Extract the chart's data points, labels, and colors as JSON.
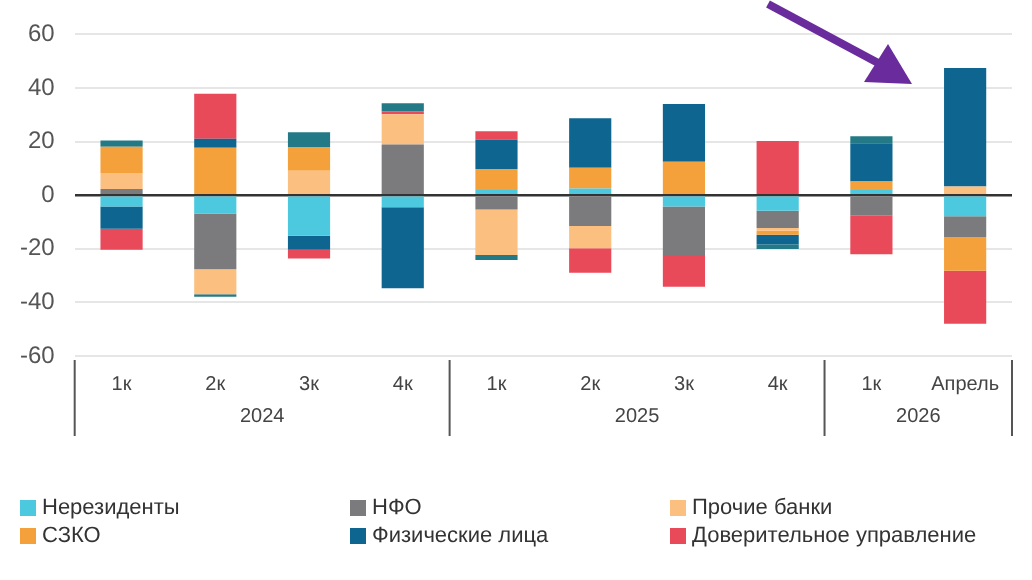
{
  "chart_data": {
    "type": "bar",
    "stacked": true,
    "categories": [
      "1к",
      "2к",
      "3к",
      "4к",
      "1к",
      "2к",
      "3к",
      "4к",
      "1к",
      "Апрель"
    ],
    "annotations": [
      "2024",
      "2025",
      "2026"
    ],
    "series": [
      {
        "name": "Нерезиденты",
        "color": "#4cc8df",
        "values": [
          -4.2,
          -6.8,
          -15.1,
          -4.5,
          1.9,
          2.5,
          -4.2,
          -5.8,
          1.9,
          -7.9
        ]
      },
      {
        "name": "НФО",
        "color": "#7b7b7d",
        "values": [
          2.3,
          -20.8,
          null,
          18.9,
          -5.3,
          -11.5,
          -18.5,
          -6.4,
          -7.7,
          -7.7
        ]
      },
      {
        "name": "Прочие банки",
        "color": "#fbbf80",
        "values": [
          6.0,
          -9.4,
          9.1,
          11.3,
          -17.0,
          -8.3,
          null,
          -1.1,
          null,
          3.2
        ]
      },
      {
        "name": "СЗКО",
        "color": "#f5a13b",
        "values": [
          9.8,
          17.7,
          8.9,
          null,
          7.9,
          7.7,
          12.5,
          -1.5,
          3.2,
          -12.6
        ]
      },
      {
        "name": "Физические лица",
        "color": "#0e6690",
        "values": [
          -8.3,
          3.4,
          -5.3,
          -30.2,
          10.9,
          18.5,
          21.5,
          -3.6,
          14.3,
          44.3
        ]
      },
      {
        "name": "Доверительное управление",
        "color": "#e84a5a",
        "values": [
          -7.9,
          16.8,
          -3.2,
          1.1,
          3.2,
          -9.1,
          -11.5,
          20.2,
          -14.3,
          -19.8
        ]
      },
      {
        "color": "#237a86",
        "values": [
          2.3,
          -0.9,
          5.5,
          3.0,
          -1.9,
          null,
          null,
          -1.7,
          2.6,
          null
        ]
      }
    ],
    "ylim": [
      -60,
      60
    ],
    "yticks": [
      -60,
      -40,
      -20,
      0,
      20,
      40,
      60
    ],
    "grid": "y",
    "legend": "bottom"
  }
}
